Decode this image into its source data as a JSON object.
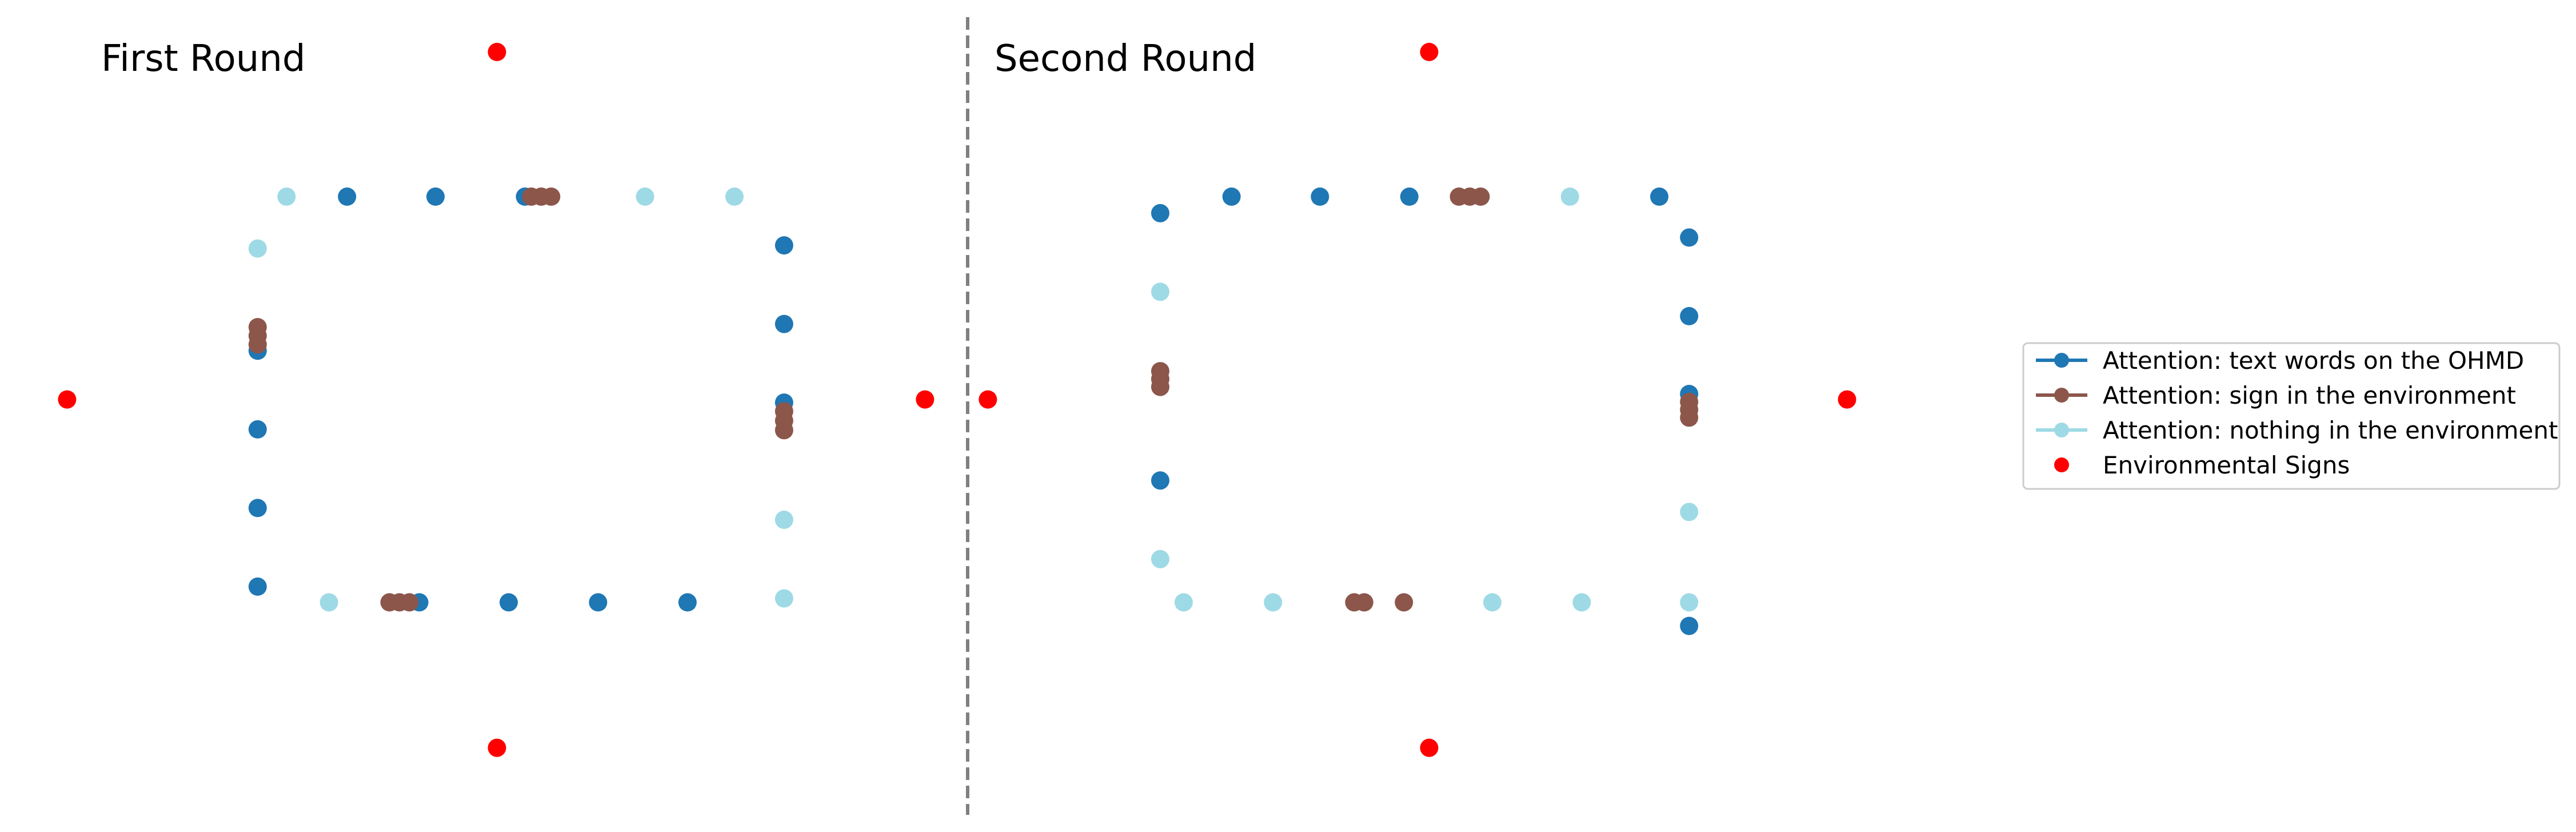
{
  "chart_data": [
    {
      "type": "scatter",
      "title": "First Round",
      "xlim": [
        0,
        1
      ],
      "ylim": [
        0,
        1
      ],
      "axes_visible": false,
      "grid": false,
      "series": [
        {
          "name": "Attention: text words on the OHMD",
          "color": "#1f77b4",
          "points": [
            [
              0.34,
              0.779
            ],
            [
              0.438,
              0.779
            ],
            [
              0.537,
              0.779
            ],
            [
              0.824,
              0.717
            ],
            [
              0.824,
              0.617
            ],
            [
              0.824,
              0.517
            ],
            [
              0.241,
              0.583
            ],
            [
              0.241,
              0.483
            ],
            [
              0.241,
              0.383
            ],
            [
              0.241,
              0.283
            ],
            [
              0.42,
              0.263
            ],
            [
              0.519,
              0.263
            ],
            [
              0.618,
              0.263
            ],
            [
              0.717,
              0.263
            ]
          ]
        },
        {
          "name": "Attention: sign in the environment",
          "color": "#8c564b",
          "points": [
            [
              0.544,
              0.779
            ],
            [
              0.555,
              0.779
            ],
            [
              0.566,
              0.779
            ],
            [
              0.241,
              0.613
            ],
            [
              0.241,
              0.602
            ],
            [
              0.241,
              0.591
            ],
            [
              0.824,
              0.506
            ],
            [
              0.824,
              0.494
            ],
            [
              0.824,
              0.482
            ],
            [
              0.387,
              0.263
            ],
            [
              0.398,
              0.263
            ],
            [
              0.409,
              0.263
            ]
          ]
        },
        {
          "name": "Attention: nothing in the environment",
          "color": "#9edae5",
          "points": [
            [
              0.273,
              0.779
            ],
            [
              0.67,
              0.779
            ],
            [
              0.769,
              0.779
            ],
            [
              0.241,
              0.713
            ],
            [
              0.824,
              0.368
            ],
            [
              0.824,
              0.268
            ],
            [
              0.32,
              0.263
            ]
          ]
        },
        {
          "name": "Environmental Signs",
          "color": "#ff0000",
          "points": [
            [
              0.506,
              0.963
            ],
            [
              0.03,
              0.521
            ],
            [
              0.98,
              0.521
            ],
            [
              0.506,
              0.078
            ]
          ]
        }
      ]
    },
    {
      "type": "scatter",
      "title": "Second Round",
      "xlim": [
        0,
        1
      ],
      "ylim": [
        0,
        1
      ],
      "axes_visible": false,
      "grid": false,
      "series": [
        {
          "name": "Attention: text words on the OHMD",
          "color": "#1f77b4",
          "points": [
            [
              0.221,
              0.758
            ],
            [
              0.3,
              0.779
            ],
            [
              0.398,
              0.779
            ],
            [
              0.497,
              0.779
            ],
            [
              0.774,
              0.779
            ],
            [
              0.807,
              0.727
            ],
            [
              0.807,
              0.627
            ],
            [
              0.807,
              0.528
            ],
            [
              0.221,
              0.418
            ],
            [
              0.807,
              0.233
            ]
          ]
        },
        {
          "name": "Attention: sign in the environment",
          "color": "#8c564b",
          "points": [
            [
              0.552,
              0.779
            ],
            [
              0.564,
              0.779
            ],
            [
              0.576,
              0.779
            ],
            [
              0.221,
              0.557
            ],
            [
              0.221,
              0.547
            ],
            [
              0.221,
              0.537
            ],
            [
              0.807,
              0.518
            ],
            [
              0.807,
              0.508
            ],
            [
              0.807,
              0.498
            ],
            [
              0.436,
              0.263
            ],
            [
              0.447,
              0.263
            ],
            [
              0.491,
              0.263
            ]
          ]
        },
        {
          "name": "Attention: nothing in the environment",
          "color": "#9edae5",
          "points": [
            [
              0.675,
              0.779
            ],
            [
              0.221,
              0.658
            ],
            [
              0.221,
              0.318
            ],
            [
              0.807,
              0.378
            ],
            [
              0.807,
              0.263
            ],
            [
              0.247,
              0.263
            ],
            [
              0.346,
              0.263
            ],
            [
              0.589,
              0.263
            ],
            [
              0.688,
              0.263
            ]
          ]
        },
        {
          "name": "Environmental Signs",
          "color": "#ff0000",
          "points": [
            [
              0.519,
              0.963
            ],
            [
              0.03,
              0.521
            ],
            [
              0.982,
              0.521
            ],
            [
              0.519,
              0.078
            ]
          ]
        }
      ]
    }
  ],
  "legend": {
    "placement": "right",
    "entries": [
      {
        "label": "Attention: text words on the OHMD",
        "color": "#1f77b4",
        "marker": "line-dot"
      },
      {
        "label": "Attention: sign in the environment",
        "color": "#8c564b",
        "marker": "line-dot"
      },
      {
        "label": "Attention: nothing in the environment",
        "color": "#9edae5",
        "marker": "line-dot"
      },
      {
        "label": "Environmental Signs",
        "color": "#ff0000",
        "marker": "dot"
      }
    ]
  }
}
